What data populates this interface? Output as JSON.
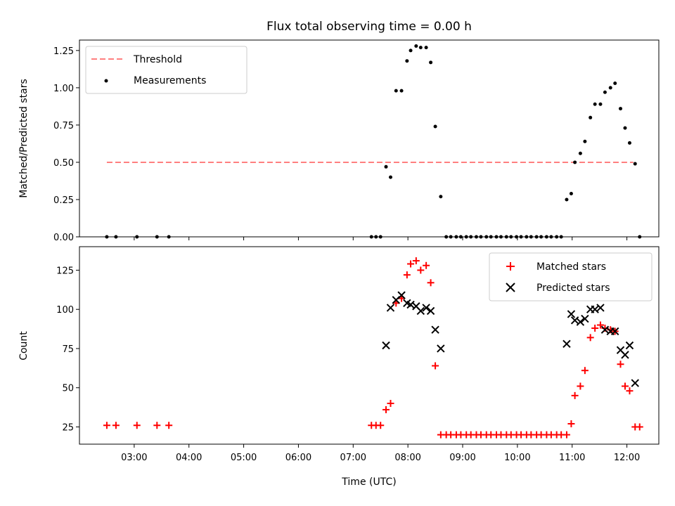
{
  "title": "Flux total observing time = 0.00 h",
  "chart_data": [
    {
      "type": "scatter",
      "ylabel": "Matched/Predicted stars",
      "ylim": [
        0,
        1.32
      ],
      "yticks": [
        "0.00",
        "0.25",
        "0.50",
        "0.75",
        "1.00",
        "1.25"
      ],
      "ytick_values": [
        0,
        0.25,
        0.5,
        0.75,
        1.0,
        1.25
      ],
      "threshold": {
        "name": "Threshold",
        "value": 0.5,
        "x_start": "02:30",
        "x_end": "12:07",
        "color": "#ff7f7f"
      },
      "legend": [
        "Threshold",
        "Measurements"
      ],
      "legend_position": "top-left",
      "series": [
        {
          "name": "Measurements",
          "color": "#000000",
          "marker": "dot",
          "points": [
            [
              "02:30",
              0
            ],
            [
              "02:40",
              0
            ],
            [
              "03:03",
              0
            ],
            [
              "03:25",
              0
            ],
            [
              "03:38",
              0
            ],
            [
              "07:20",
              0
            ],
            [
              "07:25",
              0
            ],
            [
              "07:30",
              0
            ],
            [
              "07:36",
              0.47
            ],
            [
              "07:41",
              0.4
            ],
            [
              "07:47",
              0.98
            ],
            [
              "07:53",
              0.98
            ],
            [
              "07:59",
              1.18
            ],
            [
              "08:03",
              1.25
            ],
            [
              "08:09",
              1.28
            ],
            [
              "08:14",
              1.27
            ],
            [
              "08:20",
              1.27
            ],
            [
              "08:25",
              1.17
            ],
            [
              "08:30",
              0.74
            ],
            [
              "08:36",
              0.27
            ],
            [
              "08:42",
              0
            ],
            [
              "08:47",
              0
            ],
            [
              "08:53",
              0
            ],
            [
              "08:58",
              0
            ],
            [
              "09:04",
              0
            ],
            [
              "09:09",
              0
            ],
            [
              "09:15",
              0
            ],
            [
              "09:20",
              0
            ],
            [
              "09:26",
              0
            ],
            [
              "09:31",
              0
            ],
            [
              "09:37",
              0
            ],
            [
              "09:42",
              0
            ],
            [
              "09:48",
              0
            ],
            [
              "09:53",
              0
            ],
            [
              "09:59",
              0
            ],
            [
              "10:04",
              0
            ],
            [
              "10:10",
              0
            ],
            [
              "10:15",
              0
            ],
            [
              "10:21",
              0
            ],
            [
              "10:26",
              0
            ],
            [
              "10:32",
              0
            ],
            [
              "10:37",
              0
            ],
            [
              "10:43",
              0
            ],
            [
              "10:48",
              0
            ],
            [
              "10:54",
              0.25
            ],
            [
              "10:59",
              0.29
            ],
            [
              "11:03",
              0.5
            ],
            [
              "11:09",
              0.56
            ],
            [
              "11:14",
              0.64
            ],
            [
              "11:20",
              0.8
            ],
            [
              "11:25",
              0.89
            ],
            [
              "11:31",
              0.89
            ],
            [
              "11:36",
              0.97
            ],
            [
              "11:42",
              1.0
            ],
            [
              "11:47",
              1.03
            ],
            [
              "11:53",
              0.86
            ],
            [
              "11:58",
              0.73
            ],
            [
              "12:03",
              0.63
            ],
            [
              "12:09",
              0.49
            ],
            [
              "12:14",
              0
            ]
          ]
        }
      ]
    },
    {
      "type": "scatter",
      "xlabel": "Time (UTC)",
      "ylabel": "Count",
      "ylim": [
        14,
        140
      ],
      "yticks": [
        "25",
        "50",
        "75",
        "100",
        "125"
      ],
      "ytick_values": [
        25,
        50,
        75,
        100,
        125
      ],
      "xlim": [
        "02:00",
        "12:35"
      ],
      "xticks": [
        "03:00",
        "04:00",
        "05:00",
        "06:00",
        "07:00",
        "08:00",
        "09:00",
        "10:00",
        "11:00",
        "12:00"
      ],
      "legend": [
        "Matched stars",
        "Predicted stars"
      ],
      "legend_position": "top-right",
      "series": [
        {
          "name": "Matched stars",
          "color": "#ff0000",
          "marker": "plus",
          "points": [
            [
              "02:30",
              26
            ],
            [
              "02:40",
              26
            ],
            [
              "03:03",
              26
            ],
            [
              "03:25",
              26
            ],
            [
              "03:38",
              26
            ],
            [
              "07:20",
              26
            ],
            [
              "07:25",
              26
            ],
            [
              "07:30",
              26
            ],
            [
              "07:36",
              36
            ],
            [
              "07:41",
              40
            ],
            [
              "07:47",
              104
            ],
            [
              "07:53",
              107
            ],
            [
              "07:59",
              122
            ],
            [
              "08:03",
              129
            ],
            [
              "08:09",
              131
            ],
            [
              "08:14",
              125
            ],
            [
              "08:20",
              128
            ],
            [
              "08:25",
              117
            ],
            [
              "08:30",
              64
            ],
            [
              "08:36",
              20
            ],
            [
              "08:42",
              20
            ],
            [
              "08:47",
              20
            ],
            [
              "08:53",
              20
            ],
            [
              "08:58",
              20
            ],
            [
              "09:04",
              20
            ],
            [
              "09:09",
              20
            ],
            [
              "09:15",
              20
            ],
            [
              "09:20",
              20
            ],
            [
              "09:26",
              20
            ],
            [
              "09:31",
              20
            ],
            [
              "09:37",
              20
            ],
            [
              "09:42",
              20
            ],
            [
              "09:48",
              20
            ],
            [
              "09:53",
              20
            ],
            [
              "09:59",
              20
            ],
            [
              "10:04",
              20
            ],
            [
              "10:10",
              20
            ],
            [
              "10:15",
              20
            ],
            [
              "10:21",
              20
            ],
            [
              "10:26",
              20
            ],
            [
              "10:32",
              20
            ],
            [
              "10:37",
              20
            ],
            [
              "10:43",
              20
            ],
            [
              "10:48",
              20
            ],
            [
              "10:54",
              20
            ],
            [
              "10:59",
              27
            ],
            [
              "11:03",
              45
            ],
            [
              "11:09",
              51
            ],
            [
              "11:14",
              61
            ],
            [
              "11:20",
              82
            ],
            [
              "11:25",
              88
            ],
            [
              "11:31",
              90
            ],
            [
              "11:36",
              88
            ],
            [
              "11:42",
              87
            ],
            [
              "11:47",
              86
            ],
            [
              "11:53",
              65
            ],
            [
              "11:58",
              51
            ],
            [
              "12:03",
              48
            ],
            [
              "12:09",
              25
            ],
            [
              "12:14",
              25
            ]
          ]
        },
        {
          "name": "Predicted stars",
          "color": "#000000",
          "marker": "x",
          "points": [
            [
              "07:36",
              77
            ],
            [
              "07:41",
              101
            ],
            [
              "07:47",
              106
            ],
            [
              "07:53",
              109
            ],
            [
              "07:59",
              104
            ],
            [
              "08:03",
              103
            ],
            [
              "08:09",
              102
            ],
            [
              "08:14",
              99
            ],
            [
              "08:20",
              101
            ],
            [
              "08:25",
              99
            ],
            [
              "08:30",
              87
            ],
            [
              "08:36",
              75
            ],
            [
              "10:54",
              78
            ],
            [
              "10:59",
              97
            ],
            [
              "11:03",
              93
            ],
            [
              "11:09",
              92
            ],
            [
              "11:14",
              94
            ],
            [
              "11:20",
              100
            ],
            [
              "11:25",
              100
            ],
            [
              "11:31",
              101
            ],
            [
              "11:36",
              87
            ],
            [
              "11:42",
              86
            ],
            [
              "11:47",
              86
            ],
            [
              "11:53",
              74
            ],
            [
              "11:58",
              71
            ],
            [
              "12:03",
              77
            ],
            [
              "12:09",
              53
            ]
          ]
        }
      ]
    }
  ]
}
